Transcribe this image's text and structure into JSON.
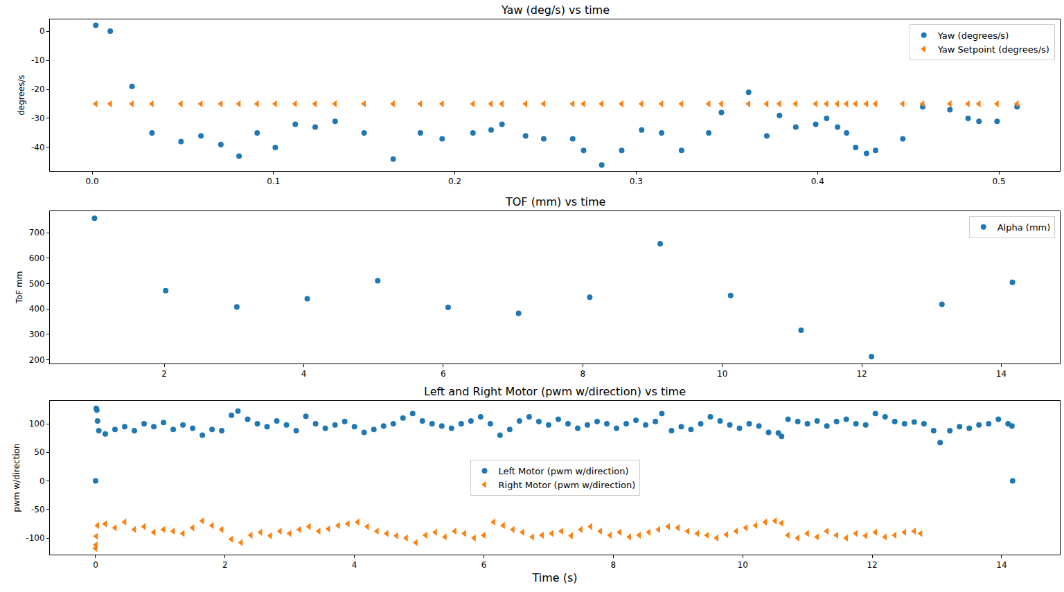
{
  "chart_data": [
    {
      "type": "scatter",
      "title": "Yaw (deg/s) vs time",
      "y_label": "degrees/s",
      "x": [
        0.002,
        0.01,
        0.022,
        0.033,
        0.049,
        0.06,
        0.071,
        0.081,
        0.091,
        0.101,
        0.112,
        0.123,
        0.134,
        0.15,
        0.166,
        0.181,
        0.193,
        0.21,
        0.22,
        0.226,
        0.239,
        0.249,
        0.265,
        0.271,
        0.281,
        0.292,
        0.303,
        0.314,
        0.325,
        0.34,
        0.347,
        0.362,
        0.372,
        0.379,
        0.388,
        0.399,
        0.405,
        0.411,
        0.416,
        0.421,
        0.427,
        0.432,
        0.447,
        0.458,
        0.473,
        0.483,
        0.489,
        0.499,
        0.51
      ],
      "series": [
        {
          "name": "Yaw (degrees/s)",
          "color": "#1f77b4",
          "marker": "circle",
          "values": [
            2,
            0,
            -19,
            -35,
            -38,
            -36,
            -39,
            -43,
            -35,
            -40,
            -32,
            -33,
            -31,
            -35,
            -44,
            -35,
            -37,
            -35,
            -34,
            -32,
            -36,
            -37,
            -37,
            -41,
            -46,
            -41,
            -34,
            -35,
            -41,
            -35,
            -28,
            -21,
            -36,
            -29,
            -33,
            -32,
            -30,
            -33,
            -35,
            -40,
            -42,
            -41,
            -37,
            -26,
            -27,
            -30,
            -31,
            -31,
            -26
          ]
        },
        {
          "name": "Yaw Setpoint (degrees/s)",
          "color": "#ff7f0e",
          "marker": "triangle-left",
          "values": [
            -25,
            -25,
            -25,
            -25,
            -25,
            -25,
            -25,
            -25,
            -25,
            -25,
            -25,
            -25,
            -25,
            -25,
            -25,
            -25,
            -25,
            -25,
            -25,
            -25,
            -25,
            -25,
            -25,
            -25,
            -25,
            -25,
            -25,
            -25,
            -25,
            -25,
            -25,
            -25,
            -25,
            -25,
            -25,
            -25,
            -25,
            -25,
            -25,
            -25,
            -25,
            -25,
            -25,
            -25,
            -25,
            -25,
            -25,
            -25,
            -25
          ]
        }
      ],
      "xlim": [
        -0.0233,
        0.5336
      ],
      "ylim": [
        -48.1,
        4.05
      ],
      "xticks": [
        {
          "value": 0,
          "label": "0.0"
        },
        0.1,
        0.2,
        0.3,
        0.4,
        0.5
      ],
      "yticks": [
        -40,
        -30,
        -20,
        -10,
        0
      ],
      "legend": "upper right",
      "grid": false
    },
    {
      "type": "scatter",
      "title": "TOF (mm) vs time",
      "y_label": "ToF mm",
      "x": [
        1.0,
        2.02,
        3.04,
        4.05,
        5.06,
        6.07,
        7.08,
        8.1,
        9.11,
        10.12,
        11.13,
        12.14,
        13.15,
        14.16
      ],
      "series": [
        {
          "name": "Alpha (mm)",
          "color": "#1f77b4",
          "marker": "circle",
          "values": [
            757,
            472,
            408,
            440,
            511,
            406,
            383,
            446,
            657,
            453,
            316,
            212,
            418,
            505
          ]
        }
      ],
      "xlim": [
        0.36,
        14.84
      ],
      "ylim": [
        185,
        785
      ],
      "xticks": [
        2,
        4,
        6,
        8,
        10,
        12,
        14
      ],
      "yticks": [
        200,
        300,
        400,
        500,
        600,
        700
      ],
      "legend": "upper right",
      "grid": false
    },
    {
      "type": "scatter",
      "title": "Left and Right Motor (pwm w/direction) vs time",
      "x_label": "Time (s)",
      "y_label": "pwm w/direction",
      "series": [
        {
          "name": "Left Motor (pwm w/direction)",
          "color": "#1f77b4",
          "marker": "circle",
          "x": [
            0,
            0.01,
            0.02,
            0.03,
            0.05,
            0.15,
            0.3,
            0.45,
            0.6,
            0.75,
            0.9,
            1.05,
            1.2,
            1.35,
            1.5,
            1.65,
            1.8,
            1.95,
            2.1,
            2.2,
            2.35,
            2.5,
            2.65,
            2.8,
            2.95,
            3.1,
            3.25,
            3.4,
            3.55,
            3.7,
            3.85,
            4.0,
            4.15,
            4.3,
            4.45,
            4.6,
            4.75,
            4.9,
            5.05,
            5.2,
            5.35,
            5.5,
            5.65,
            5.8,
            5.95,
            6.1,
            6.25,
            6.4,
            6.55,
            6.7,
            6.85,
            7.0,
            7.15,
            7.3,
            7.45,
            7.6,
            7.75,
            7.9,
            8.05,
            8.2,
            8.35,
            8.5,
            8.65,
            8.75,
            8.9,
            9.05,
            9.2,
            9.35,
            9.5,
            9.65,
            9.8,
            9.95,
            10.1,
            10.25,
            10.4,
            10.55,
            10.6,
            10.7,
            10.85,
            11.0,
            11.15,
            11.3,
            11.45,
            11.6,
            11.75,
            11.9,
            12.05,
            12.2,
            12.35,
            12.5,
            12.65,
            12.8,
            12.95,
            13.05,
            13.2,
            13.35,
            13.5,
            13.65,
            13.8,
            13.95,
            14.1,
            14.16,
            14.17
          ],
          "values": [
            0,
            127,
            124,
            105,
            88,
            82,
            90,
            95,
            88,
            100,
            95,
            102,
            90,
            98,
            92,
            80,
            90,
            88,
            115,
            122,
            108,
            100,
            95,
            105,
            98,
            88,
            113,
            100,
            92,
            98,
            104,
            95,
            85,
            90,
            96,
            100,
            110,
            118,
            105,
            100,
            96,
            92,
            100,
            105,
            112,
            100,
            80,
            90,
            105,
            112,
            104,
            98,
            108,
            100,
            92,
            98,
            104,
            100,
            92,
            100,
            106,
            98,
            104,
            118,
            88,
            95,
            90,
            100,
            112,
            105,
            98,
            92,
            100,
            96,
            85,
            84,
            78,
            108,
            104,
            100,
            105,
            96,
            104,
            108,
            100,
            98,
            118,
            112,
            104,
            100,
            103,
            100,
            88,
            67,
            88,
            95,
            92,
            98,
            100,
            108,
            100,
            96,
            0
          ]
        },
        {
          "name": "Right Motor (pwm w/direction)",
          "color": "#ff7f0e",
          "marker": "triangle-left",
          "x": [
            0,
            0.005,
            0.01,
            0.03,
            0.15,
            0.3,
            0.45,
            0.6,
            0.75,
            0.9,
            1.05,
            1.2,
            1.35,
            1.5,
            1.65,
            1.8,
            1.95,
            2.1,
            2.25,
            2.4,
            2.55,
            2.7,
            2.85,
            3.0,
            3.15,
            3.3,
            3.45,
            3.6,
            3.75,
            3.9,
            4.05,
            4.2,
            4.35,
            4.5,
            4.65,
            4.8,
            4.95,
            5.1,
            5.25,
            5.4,
            5.55,
            5.7,
            5.85,
            6.0,
            6.15,
            6.3,
            6.45,
            6.6,
            6.75,
            6.9,
            7.05,
            7.2,
            7.35,
            7.5,
            7.65,
            7.8,
            7.95,
            8.1,
            8.25,
            8.4,
            8.55,
            8.7,
            8.85,
            9.0,
            9.15,
            9.3,
            9.45,
            9.6,
            9.75,
            9.9,
            10.05,
            10.2,
            10.35,
            10.5,
            10.6,
            10.7,
            10.85,
            11.0,
            11.15,
            11.3,
            11.45,
            11.6,
            11.75,
            11.9,
            12.05,
            12.2,
            12.35,
            12.5,
            12.65,
            12.75
          ],
          "values": [
            -118,
            -112,
            -97,
            -78,
            -75,
            -82,
            -72,
            -85,
            -80,
            -90,
            -85,
            -88,
            -92,
            -82,
            -70,
            -78,
            -85,
            -102,
            -108,
            -95,
            -90,
            -96,
            -88,
            -92,
            -85,
            -80,
            -88,
            -84,
            -78,
            -75,
            -72,
            -80,
            -88,
            -92,
            -96,
            -100,
            -108,
            -95,
            -90,
            -98,
            -88,
            -92,
            -100,
            -95,
            -72,
            -78,
            -85,
            -90,
            -98,
            -95,
            -92,
            -88,
            -96,
            -85,
            -80,
            -88,
            -95,
            -90,
            -98,
            -95,
            -90,
            -85,
            -80,
            -82,
            -88,
            -92,
            -95,
            -100,
            -94,
            -88,
            -82,
            -78,
            -72,
            -70,
            -74,
            -95,
            -100,
            -92,
            -98,
            -88,
            -95,
            -100,
            -92,
            -96,
            -90,
            -98,
            -95,
            -90,
            -88,
            -92
          ]
        }
      ],
      "xlim": [
        -0.706,
        14.9
      ],
      "ylim": [
        -129,
        140
      ],
      "xticks": [
        0,
        2,
        4,
        6,
        8,
        10,
        12,
        14
      ],
      "yticks": [
        -100,
        -50,
        0,
        50,
        100
      ],
      "legend": "center",
      "grid": false
    }
  ]
}
